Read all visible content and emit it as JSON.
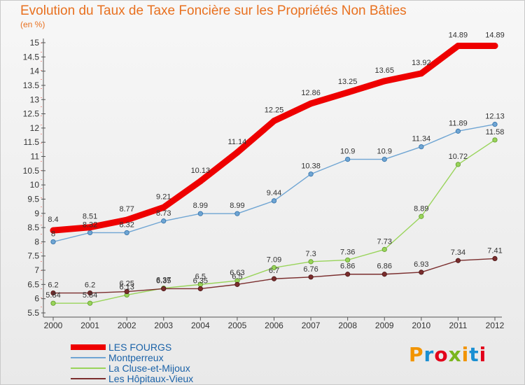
{
  "header": {
    "title": "Evolution du Taux de Taxe Foncière sur les Propriétés Non Bâties",
    "unit": "(en %)"
  },
  "logo": {
    "text": "Proxiti",
    "colors": [
      "#f29400",
      "#1a8fd2",
      "#e2001a",
      "#7ab51d",
      "#f29400",
      "#1a8fd2",
      "#e2001a"
    ]
  },
  "chart_data": {
    "type": "line",
    "title": "Evolution du Taux de Taxe Foncière sur les Propriétés Non Bâties",
    "ylabel": "(en %)",
    "xlabel": "",
    "x": [
      "2000",
      "2001",
      "2002",
      "2003",
      "2004",
      "2005",
      "2006",
      "2007",
      "2008",
      "2009",
      "2010",
      "2011",
      "2012"
    ],
    "ylim": [
      5.5,
      15
    ],
    "yticks": [
      "5.5",
      "6",
      "6.5",
      "7",
      "7.5",
      "8",
      "8.5",
      "9",
      "9.5",
      "10",
      "10.5",
      "11",
      "11.5",
      "12",
      "12.5",
      "13",
      "13.5",
      "14",
      "14.5",
      "15"
    ],
    "grid": false,
    "legend_position": "bottom-left",
    "series": [
      {
        "name": "LES FOURGS",
        "color": "#ee0000",
        "values": [
          8.4,
          8.51,
          8.77,
          9.21,
          10.13,
          11.14,
          12.25,
          12.86,
          13.25,
          13.65,
          13.92,
          14.89,
          14.89
        ],
        "labels": [
          "8.4",
          "8.51",
          "8.77",
          "9.21",
          "10.13",
          "11.14",
          "12.25",
          "12.86",
          "13.25",
          "13.65",
          "13.92",
          "14.89",
          "14.89"
        ]
      },
      {
        "name": "Montperreux",
        "color": "#6fa5d3",
        "values": [
          8.0,
          8.32,
          8.32,
          8.73,
          8.99,
          8.99,
          9.44,
          10.38,
          10.9,
          10.9,
          11.34,
          11.89,
          12.13
        ],
        "labels": [
          "8",
          "8.32",
          "8.32",
          "8.73",
          "8.99",
          "8.99",
          "9.44",
          "10.38",
          "10.9",
          "10.9",
          "11.34",
          "11.89",
          "12.13"
        ]
      },
      {
        "name": "La Cluse-et-Mijoux",
        "color": "#99d45a",
        "values": [
          5.84,
          5.84,
          6.13,
          6.37,
          6.5,
          6.63,
          7.09,
          7.3,
          7.36,
          7.73,
          8.89,
          10.72,
          11.58
        ],
        "labels": [
          "5.84",
          "5.84",
          "6.13",
          "6.37",
          "6.5",
          "6.63",
          "7.09",
          "7.3",
          "7.36",
          "7.73",
          "8.89",
          "10.72",
          "11.58"
        ]
      },
      {
        "name": "Les Hôpitaux-Vieux",
        "color": "#7a2d2d",
        "values": [
          6.2,
          6.2,
          6.25,
          6.35,
          6.35,
          6.5,
          6.7,
          6.76,
          6.86,
          6.86,
          6.93,
          7.34,
          7.41
        ],
        "labels": [
          "6.2",
          "6.2",
          "6.25",
          "6.35",
          "6.35",
          "6.5",
          "6.7",
          "6.76",
          "6.86",
          "6.86",
          "6.93",
          "7.34",
          "7.41"
        ]
      }
    ]
  }
}
